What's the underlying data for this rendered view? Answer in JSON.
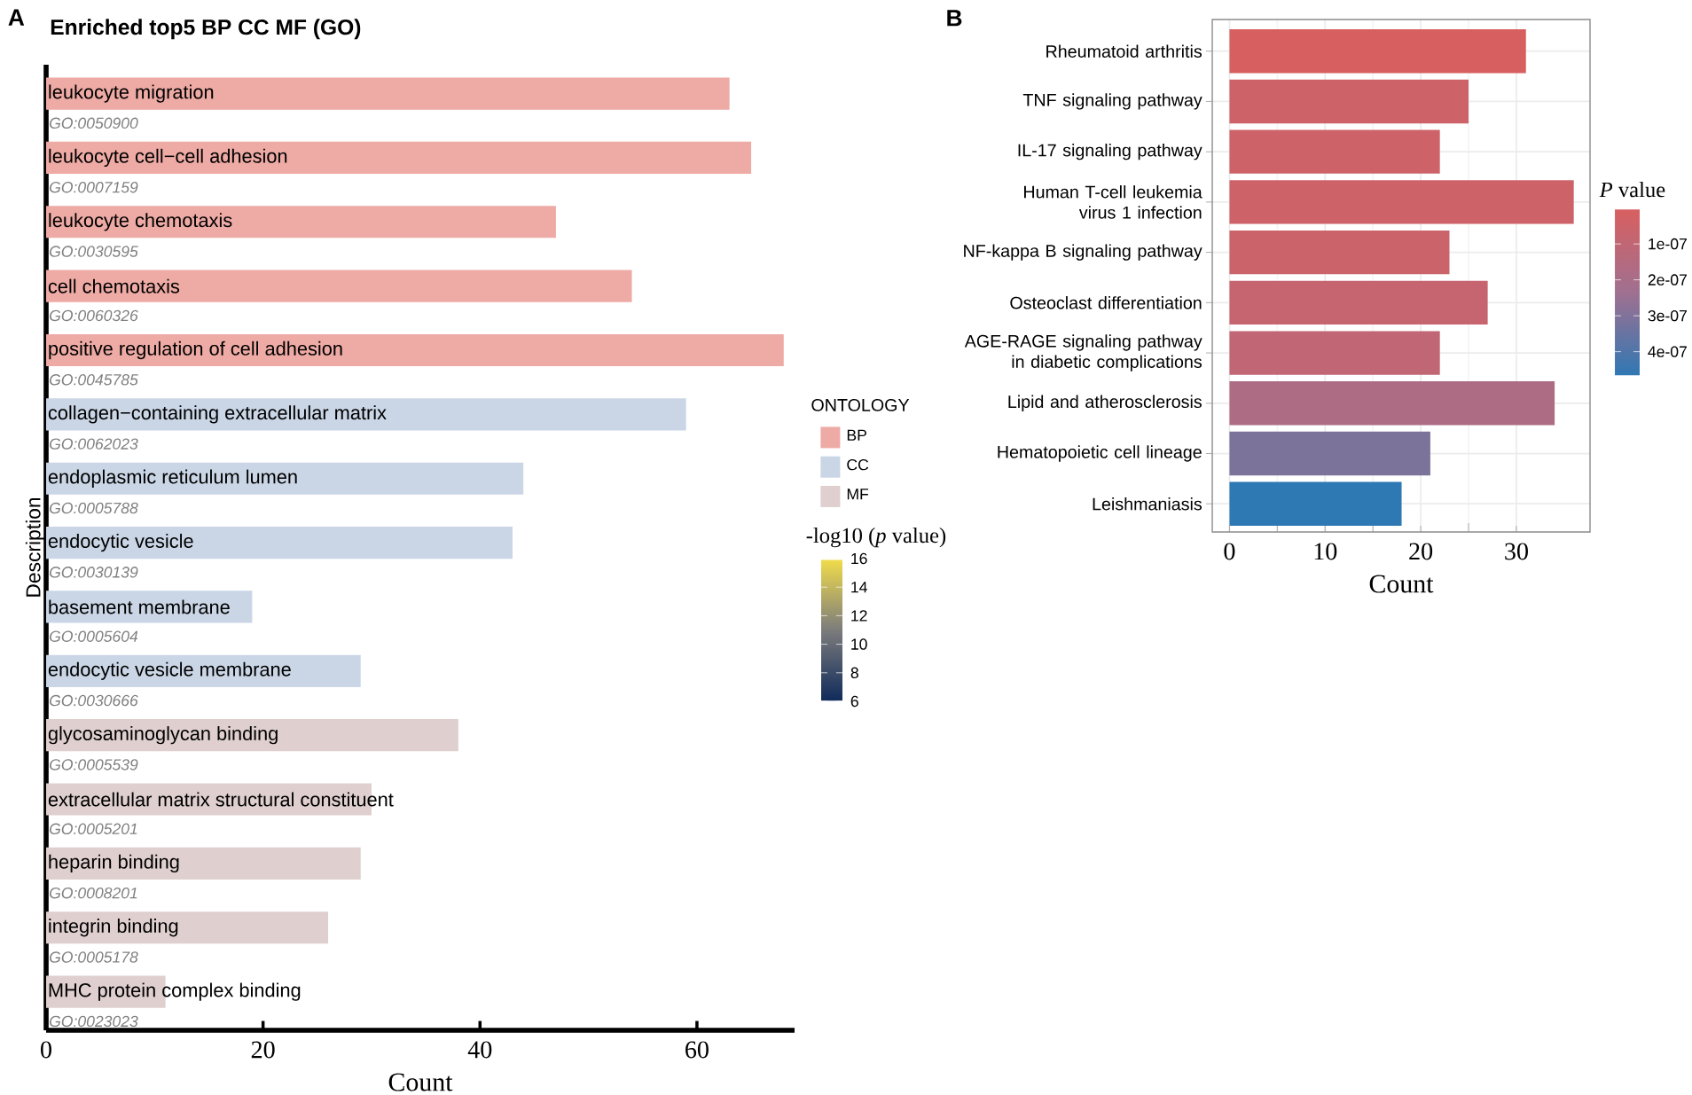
{
  "chart_data": [
    {
      "type": "bar",
      "orientation": "horizontal",
      "title": "Enriched top5 BP CC MF (GO)",
      "xlabel": "Count",
      "ylabel": "Description",
      "categories": [
        "leukocyte migration",
        "leukocyte cell−cell adhesion",
        "leukocyte chemotaxis",
        "cell chemotaxis",
        "positive regulation of cell adhesion",
        "collagen−containing extracellular matrix",
        "endoplasmic reticulum lumen",
        "endocytic vesicle",
        "basement membrane",
        "endocytic vesicle membrane",
        "glycosaminoglycan binding",
        "extracellular matrix structural constituent",
        "heparin binding",
        "integrin binding",
        "MHC protein complex binding"
      ],
      "series": [
        {
          "name": "BP",
          "color": "#eeaaa4",
          "values": [
            63,
            65,
            47,
            54,
            68,
            null,
            null,
            null,
            null,
            null,
            null,
            null,
            null,
            null,
            null
          ]
        },
        {
          "name": "CC",
          "color": "#cad6e6",
          "values": [
            null,
            null,
            null,
            null,
            null,
            59,
            44,
            43,
            19,
            29,
            null,
            null,
            null,
            null,
            null
          ]
        },
        {
          "name": "MF",
          "color": "#dfcfcf",
          "values": [
            null,
            null,
            null,
            null,
            null,
            null,
            null,
            null,
            null,
            null,
            38,
            30,
            29,
            26,
            11
          ]
        }
      ],
      "xlim": [
        0,
        69
      ],
      "xticks": [
        0,
        20,
        40,
        60
      ],
      "legend": "right",
      "legend_title": "ONTOLOGY",
      "clabel": "-log10 (*p* value)",
      "clim": [
        6,
        16
      ],
      "cticks": [
        6,
        8,
        10,
        12,
        14,
        16
      ],
      "annotations": [
        "GO:0050900",
        "GO:0007159",
        "GO:0030595",
        "GO:0060326",
        "GO:0045785",
        "GO:0062023",
        "GO:0005788",
        "GO:0030139",
        "GO:0005604",
        "GO:0030666",
        "GO:0005539",
        "GO:0005201",
        "GO:0008201",
        "GO:0005178",
        "GO:0023023",
        "A"
      ]
    },
    {
      "type": "bar",
      "orientation": "horizontal",
      "xlabel": "Count",
      "categories": [
        "Rheumatoid arthritis",
        "TNF signaling pathway",
        "IL-17 signaling pathway",
        "Human T-cell leukemia virus 1 infection",
        "NF-kappa B signaling pathway",
        "Osteoclast differentiation",
        "AGE-RAGE signaling pathway in diabetic complications",
        "Lipid and atherosclerosis",
        "Hematopoietic cell lineage",
        "Leishmaniasis"
      ],
      "values": [
        31,
        25,
        22,
        36,
        23,
        27,
        22,
        34,
        21,
        18
      ],
      "cvalues": [
        5e-09,
        5e-08,
        5e-08,
        5e-08,
        6e-08,
        8e-08,
        1e-07,
        1.8e-07,
        3.1e-07,
        4.7e-07
      ],
      "xlim": [
        -1.8,
        37.7
      ],
      "xticks": [
        0,
        10,
        20,
        30
      ],
      "grid": true,
      "clabel": "*P* value",
      "clim": [
        4.7e-07,
        1e-09
      ],
      "cticks": [
        {
          "value": 1e-07,
          "label": "1e-07"
        },
        {
          "value": 2e-07,
          "label": "2e-07"
        },
        {
          "value": 3e-07,
          "label": "3e-07"
        },
        {
          "value": 4e-07,
          "label": "4e-07"
        }
      ],
      "annotations": [
        "B"
      ]
    }
  ]
}
